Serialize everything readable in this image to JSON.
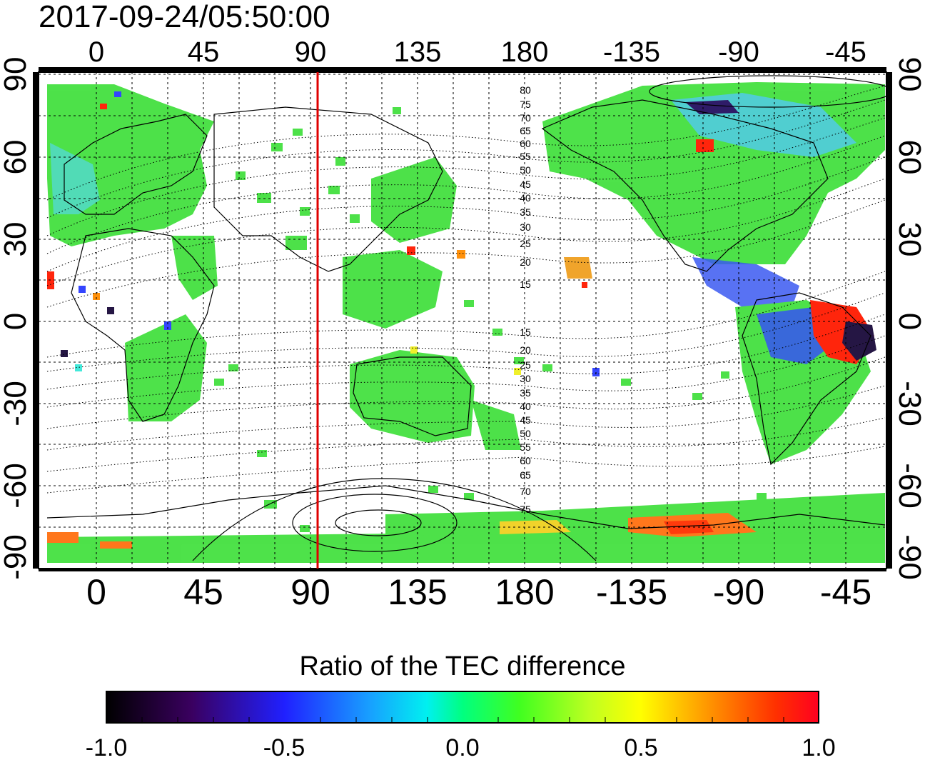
{
  "title": "2017-09-24/05:50:00",
  "top_lon_labels": [
    "0",
    "45",
    "90",
    "135",
    "180",
    "-135",
    "-90",
    "-45"
  ],
  "bottom_lon_labels": [
    "0",
    "45",
    "90",
    "135",
    "180",
    "-135",
    "-90",
    "-45"
  ],
  "left_lat_labels": [
    "90",
    "60",
    "30",
    "0",
    "-30",
    "-60",
    "-90"
  ],
  "right_lat_labels": [
    "90",
    "60",
    "30",
    "0",
    "-30",
    "-60",
    "-90"
  ],
  "north_contour_labels": [
    "80",
    "75",
    "70",
    "65",
    "60",
    "55",
    "50",
    "45",
    "40",
    "35",
    "30",
    "25",
    "20",
    "15"
  ],
  "south_contour_labels": [
    "15",
    "20",
    "25",
    "30",
    "35",
    "40",
    "45",
    "50",
    "55",
    "60",
    "65",
    "70",
    "75"
  ],
  "colorbar": {
    "title": "Ratio of the TEC difference",
    "tick_labels": [
      "-1.0",
      "-0.5",
      "0.0",
      "0.5",
      "1.0"
    ],
    "min": -1.0,
    "max": 1.0
  },
  "terminator_longitude": 93,
  "colors": {
    "grid": "#000000",
    "terminator": "#e00000",
    "data_main": "#3ce63c",
    "data_cyan": "#38e8d8",
    "data_blue": "#2a3cff",
    "data_dark": "#1a0a3a",
    "data_red": "#ff1a00",
    "data_orange": "#ff8c00",
    "data_yellow": "#f0f020"
  }
}
